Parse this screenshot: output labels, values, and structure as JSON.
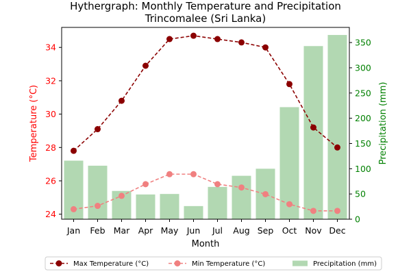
{
  "chart_data": {
    "type": "bar",
    "title": "Hythergraph: Monthly Temperature and Precipitation",
    "subtitle": "Trincomalee (Sri Lanka)",
    "xlabel": "Month",
    "ylabel_left": "Temperature (°C)",
    "ylabel_right": "Precipitation (mm)",
    "categories": [
      "Jan",
      "Feb",
      "Mar",
      "Apr",
      "May",
      "Jun",
      "Jul",
      "Aug",
      "Sep",
      "Oct",
      "Nov",
      "Dec"
    ],
    "ylim_left": [
      23.7,
      35.2
    ],
    "ylim_right": [
      0,
      380
    ],
    "yticks_left": [
      24,
      26,
      28,
      30,
      32,
      34
    ],
    "yticks_right": [
      0,
      50,
      100,
      150,
      200,
      250,
      300,
      350
    ],
    "grid": false,
    "legend_placement": "bottom",
    "series": [
      {
        "name": "Max Temperature (°C)",
        "kind": "line",
        "axis": "left",
        "color": "#8b0000",
        "linestyle": "dashed",
        "marker": "circle",
        "values": [
          27.8,
          29.1,
          30.8,
          32.9,
          34.5,
          34.7,
          34.5,
          34.3,
          34.0,
          31.8,
          29.2,
          28.0
        ]
      },
      {
        "name": "Min Temperature (°C)",
        "kind": "line",
        "axis": "left",
        "color": "#f08080",
        "linestyle": "dashed",
        "marker": "circle",
        "values": [
          24.3,
          24.5,
          25.1,
          25.8,
          26.4,
          26.4,
          25.8,
          25.6,
          25.2,
          24.6,
          24.2,
          24.2
        ]
      },
      {
        "name": "Precipitation (mm)",
        "kind": "bar",
        "axis": "right",
        "color": "#b2d8b2",
        "values": [
          116,
          106,
          56,
          49,
          50,
          26,
          64,
          86,
          100,
          222,
          343,
          365
        ]
      }
    ]
  }
}
